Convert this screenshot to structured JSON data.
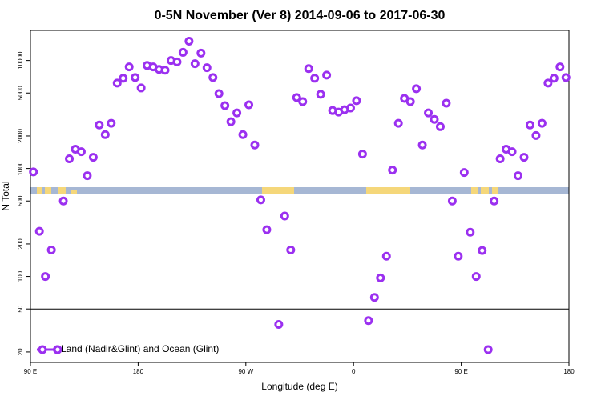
{
  "chart_data": {
    "type": "scatter",
    "title": "0-5N November (Ver 8)   2014-09-06 to 2017-06-30",
    "x_label": "Longitude (deg E)",
    "y_label": "N Total",
    "xlim": [
      90,
      540
    ],
    "ylim": [
      16,
      19000
    ],
    "log_y": true,
    "xticks": [
      {
        "value": 90,
        "label": "90 E"
      },
      {
        "value": 180,
        "label": "180"
      },
      {
        "value": 270,
        "label": "90 W"
      },
      {
        "value": 360,
        "label": "0"
      },
      {
        "value": 450,
        "label": "90 E"
      },
      {
        "value": 540,
        "label": "180"
      }
    ],
    "yticks": [
      20,
      50,
      100,
      200,
      500,
      1000,
      2000,
      5000,
      10000
    ],
    "hline": 50,
    "legend": "bottom-left",
    "x": [
      92.5,
      97.5,
      102.5,
      107.5,
      112.5,
      117.5,
      122.5,
      127.5,
      132.5,
      137.5,
      142.5,
      147.5,
      152.5,
      157.5,
      162.5,
      167.5,
      172.5,
      177.5,
      182.5,
      187.5,
      192.5,
      197.5,
      202.5,
      207.5,
      212.5,
      217.5,
      222.5,
      227.5,
      232.5,
      237.5,
      242.5,
      247.5,
      252.5,
      257.5,
      262.5,
      267.5,
      272.5,
      277.5,
      282.5,
      287.5,
      292.5,
      297.5,
      302.5,
      307.5,
      312.5,
      317.5,
      322.5,
      327.5,
      332.5,
      337.5,
      342.5,
      347.5,
      352.5,
      357.5,
      362.5,
      367.5,
      372.5,
      377.5,
      382.5,
      387.5,
      392.5,
      397.5,
      402.5,
      407.5,
      412.5,
      417.5,
      422.5,
      427.5,
      432.5,
      437.5,
      442.5,
      447.5,
      452.5,
      457.5,
      462.5,
      467.5,
      472.5,
      477.5,
      482.5,
      487.5,
      492.5,
      497.5,
      502.5,
      507.5,
      512.5,
      517.5,
      522.5,
      527.5,
      532.5,
      537.5
    ],
    "series": [
      {
        "name": "Land (Nadir&Glint) and Ocean (Glint)",
        "color": "#9b30f0",
        "values": [
          930,
          262,
          100,
          176,
          21,
          500,
          1230,
          1510,
          1430,
          857,
          1270,
          2530,
          2060,
          2620,
          6180,
          6850,
          8720,
          6960,
          5570,
          9000,
          8720,
          8270,
          8130,
          10000,
          9700,
          11900,
          15100,
          9340,
          11700,
          8570,
          6960,
          4940,
          3820,
          2710,
          3270,
          2060,
          3890,
          1650,
          512,
          271,
          null,
          36,
          363,
          176,
          4540,
          4160,
          8410,
          6850,
          4860,
          7330,
          3440,
          3330,
          3500,
          3630,
          4240,
          1360,
          39,
          64,
          97,
          154,
          966,
          2620,
          4460,
          4160,
          5480,
          1650,
          3270,
          2850,
          2440,
          4020,
          500,
          154,
          918,
          257,
          100,
          174,
          21,
          500,
          1230,
          1510,
          1430,
          857,
          1270,
          2530,
          2020,
          2620,
          6180,
          6850,
          8720,
          6960
        ]
      }
    ]
  }
}
